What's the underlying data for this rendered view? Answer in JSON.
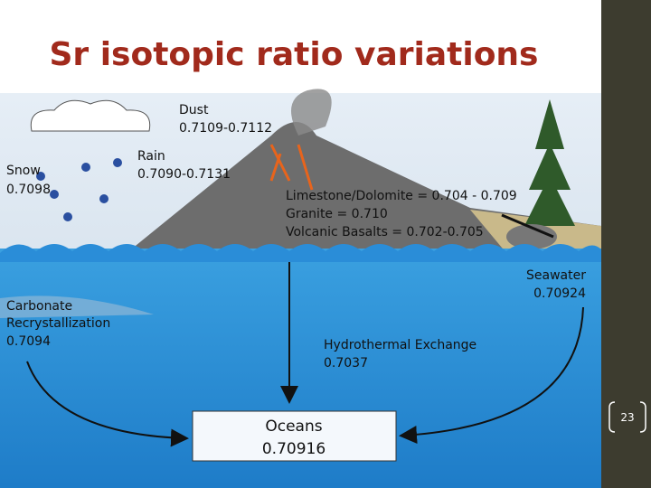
{
  "title": "Sr isotopic ratio variations",
  "labels": {
    "dust": [
      "Dust",
      "0.7109-0.7112"
    ],
    "snow": [
      "Snow",
      "0.7098"
    ],
    "rain": [
      "Rain",
      "0.7090-0.7131"
    ],
    "rocks": [
      "Limestone/Dolomite = 0.704 - 0.709",
      "Granite = 0.710",
      "Volcanic Basalts = 0.702-0.705"
    ],
    "seawater": [
      "Seawater",
      "0.70924"
    ],
    "carbonate": [
      "Carbonate",
      "Recrystallization",
      "0.7094"
    ],
    "hydrothermal": [
      "Hydrothermal  Exchange",
      "0.7037"
    ],
    "oceans": [
      "Oceans",
      "0.70916"
    ]
  },
  "slide_number": "23"
}
